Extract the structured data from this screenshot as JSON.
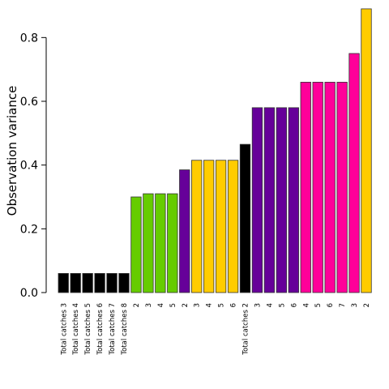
{
  "chart_data": {
    "type": "bar",
    "title": "",
    "xlabel": "",
    "ylabel": "Observation variance",
    "ylim": [
      0,
      0.9
    ],
    "yticks": [
      "0.0",
      "0.2",
      "0.4",
      "0.6",
      "0.8"
    ],
    "grid": false,
    "legend": "none",
    "colors": {
      "black": "#000000",
      "green": "#66cc00",
      "purple": "#660099",
      "yellow": "#ffcc00",
      "pink": "#ff0099"
    },
    "categories": [
      "Total catches 3",
      "Total catches 4",
      "Total catches 5",
      "Total catches 6",
      "Total catches 7",
      "Total catches 8",
      "2",
      "3",
      "4",
      "5",
      "2",
      "3",
      "4",
      "5",
      "6",
      "Total catches 2",
      "3",
      "4",
      "5",
      "6",
      "4",
      "5",
      "6",
      "7",
      "3",
      "2"
    ],
    "values": [
      0.06,
      0.06,
      0.06,
      0.06,
      0.06,
      0.06,
      0.3,
      0.31,
      0.31,
      0.31,
      0.385,
      0.415,
      0.415,
      0.415,
      0.415,
      0.465,
      0.58,
      0.58,
      0.58,
      0.58,
      0.66,
      0.66,
      0.66,
      0.66,
      0.75,
      0.89
    ],
    "bar_colors": [
      "#000000",
      "#000000",
      "#000000",
      "#000000",
      "#000000",
      "#000000",
      "#66cc00",
      "#66cc00",
      "#66cc00",
      "#66cc00",
      "#660099",
      "#ffcc00",
      "#ffcc00",
      "#ffcc00",
      "#ffcc00",
      "#000000",
      "#660099",
      "#660099",
      "#660099",
      "#660099",
      "#ff0099",
      "#ff0099",
      "#ff0099",
      "#ff0099",
      "#ff0099",
      "#ffcc00"
    ]
  }
}
